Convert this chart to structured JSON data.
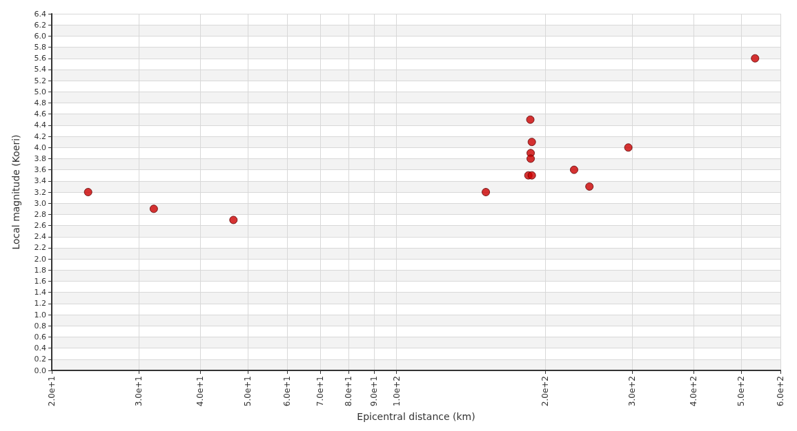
{
  "chart_data": {
    "type": "scatter",
    "xlabel": "Epicentral distance (km)",
    "ylabel": "Local magnitude (Koeri)",
    "log": "x",
    "grid": true,
    "marker": "circle",
    "x": [
      23.7,
      32.2,
      46.7,
      151.7,
      186.7,
      188,
      187,
      187,
      185,
      188,
      229,
      246,
      295,
      533
    ],
    "series": [
      {
        "color": "#cc0000",
        "values": [
          3.2,
          2.9,
          2.7,
          3.2,
          4.5,
          4.1,
          3.9,
          3.8,
          3.5,
          3.5,
          3.6,
          3.3,
          4.0,
          5.6
        ]
      }
    ],
    "xlim": [
      20,
      600
    ],
    "xticks": [
      {
        "value": 20,
        "label": "2.0e+1"
      },
      {
        "value": 30,
        "label": "3.0e+1"
      },
      {
        "value": 40,
        "label": "4.0e+1"
      },
      {
        "value": 50,
        "label": "5.0e+1"
      },
      {
        "value": 60,
        "label": "6.0e+1"
      },
      {
        "value": 70,
        "label": "7.0e+1"
      },
      {
        "value": 80,
        "label": "8.0e+1"
      },
      {
        "value": 90,
        "label": "9.0e+1"
      },
      {
        "value": 100,
        "label": "1.0e+2"
      },
      {
        "value": 200,
        "label": "2.0e+2"
      },
      {
        "value": 300,
        "label": "3.0e+2"
      },
      {
        "value": 400,
        "label": "4.0e+2"
      },
      {
        "value": 500,
        "label": "5.0e+2"
      },
      {
        "value": 600,
        "label": "6.0e+2"
      }
    ],
    "ylim": [
      0,
      6.4
    ],
    "yticks": [
      {
        "value": 0,
        "label": "0.0"
      },
      {
        "value": 0.2,
        "label": "0.2"
      },
      {
        "value": 0.4,
        "label": "0.4"
      },
      {
        "value": 0.6,
        "label": "0.6"
      },
      {
        "value": 0.8,
        "label": "0.8"
      },
      {
        "value": 1,
        "label": "1.0"
      },
      {
        "value": 1.2,
        "label": "1.2"
      },
      {
        "value": 1.4,
        "label": "1.4"
      },
      {
        "value": 1.6,
        "label": "1.6"
      },
      {
        "value": 1.8,
        "label": "1.8"
      },
      {
        "value": 2,
        "label": "2.0"
      },
      {
        "value": 2.2,
        "label": "2.2"
      },
      {
        "value": 2.4,
        "label": "2.4"
      },
      {
        "value": 2.6,
        "label": "2.6"
      },
      {
        "value": 2.8,
        "label": "2.8"
      },
      {
        "value": 3,
        "label": "3.0"
      },
      {
        "value": 3.2,
        "label": "3.2"
      },
      {
        "value": 3.4,
        "label": "3.4"
      },
      {
        "value": 3.6,
        "label": "3.6"
      },
      {
        "value": 3.8,
        "label": "3.8"
      },
      {
        "value": 4,
        "label": "4.0"
      },
      {
        "value": 4.2,
        "label": "4.2"
      },
      {
        "value": 4.4,
        "label": "4.4"
      },
      {
        "value": 4.6,
        "label": "4.6"
      },
      {
        "value": 4.8,
        "label": "4.8"
      },
      {
        "value": 5,
        "label": "5.0"
      },
      {
        "value": 5.2,
        "label": "5.2"
      },
      {
        "value": 5.4,
        "label": "5.4"
      },
      {
        "value": 5.6,
        "label": "5.6"
      },
      {
        "value": 5.8,
        "label": "5.8"
      },
      {
        "value": 6,
        "label": "6.0"
      },
      {
        "value": 6.2,
        "label": "6.2"
      },
      {
        "value": 6.4,
        "label": "6.4"
      }
    ]
  }
}
